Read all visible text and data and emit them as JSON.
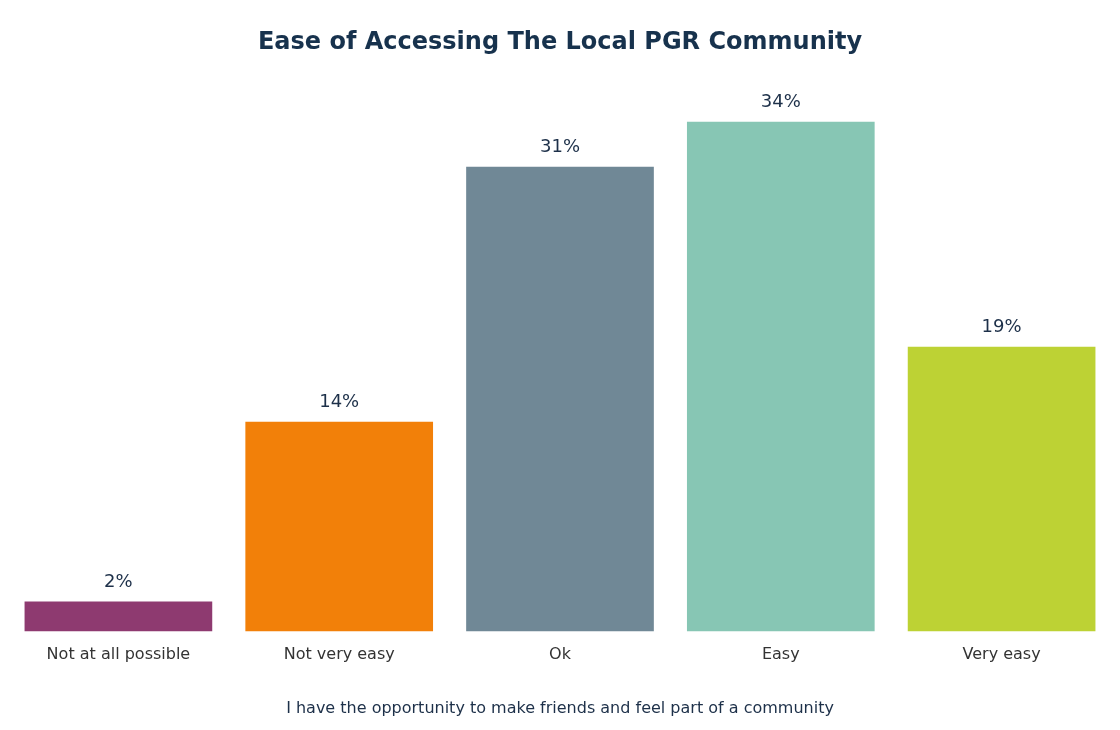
{
  "chart_data": {
    "type": "bar",
    "title": "Ease of Accessing The Local PGR Community",
    "xlabel": "I have the opportunity to make friends and feel part of a community",
    "categories": [
      "Not at all possible",
      "Not very easy",
      "Ok",
      "Easy",
      "Very easy"
    ],
    "values": [
      2,
      14,
      31,
      34,
      19
    ],
    "value_labels": [
      "2%",
      "14%",
      "31%",
      "34%",
      "19%"
    ],
    "colors": [
      "#8e3a70",
      "#f28009",
      "#708896",
      "#87c6b4",
      "#bdd234"
    ],
    "grid": false,
    "legend": false
  }
}
